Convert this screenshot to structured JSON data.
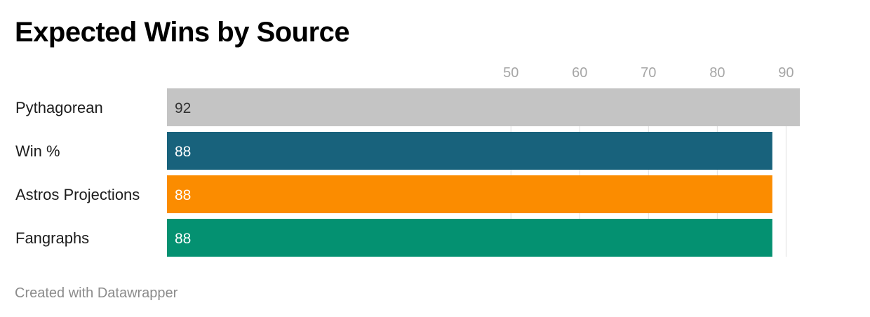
{
  "title": "Expected Wins by Source",
  "footer": "Created with Datawrapper",
  "chart_data": {
    "type": "bar",
    "orientation": "horizontal",
    "title": "Expected Wins by Source",
    "xlabel": "",
    "ylabel": "",
    "categories": [
      "Pythagorean",
      "Win %",
      "Astros Projections",
      "Fangraphs"
    ],
    "values": [
      92,
      88,
      88,
      88
    ],
    "value_labels": [
      "92",
      "88",
      "88",
      "88"
    ],
    "colors": [
      "#c4c4c4",
      "#18627c",
      "#fb8c00",
      "#049171"
    ],
    "label_colors": [
      "#333333",
      "#ffffff",
      "#ffffff",
      "#ffffff"
    ],
    "xticks": [
      50,
      60,
      70,
      80,
      90
    ],
    "xlim": [
      0,
      92
    ],
    "grid": true,
    "legend": "none"
  }
}
